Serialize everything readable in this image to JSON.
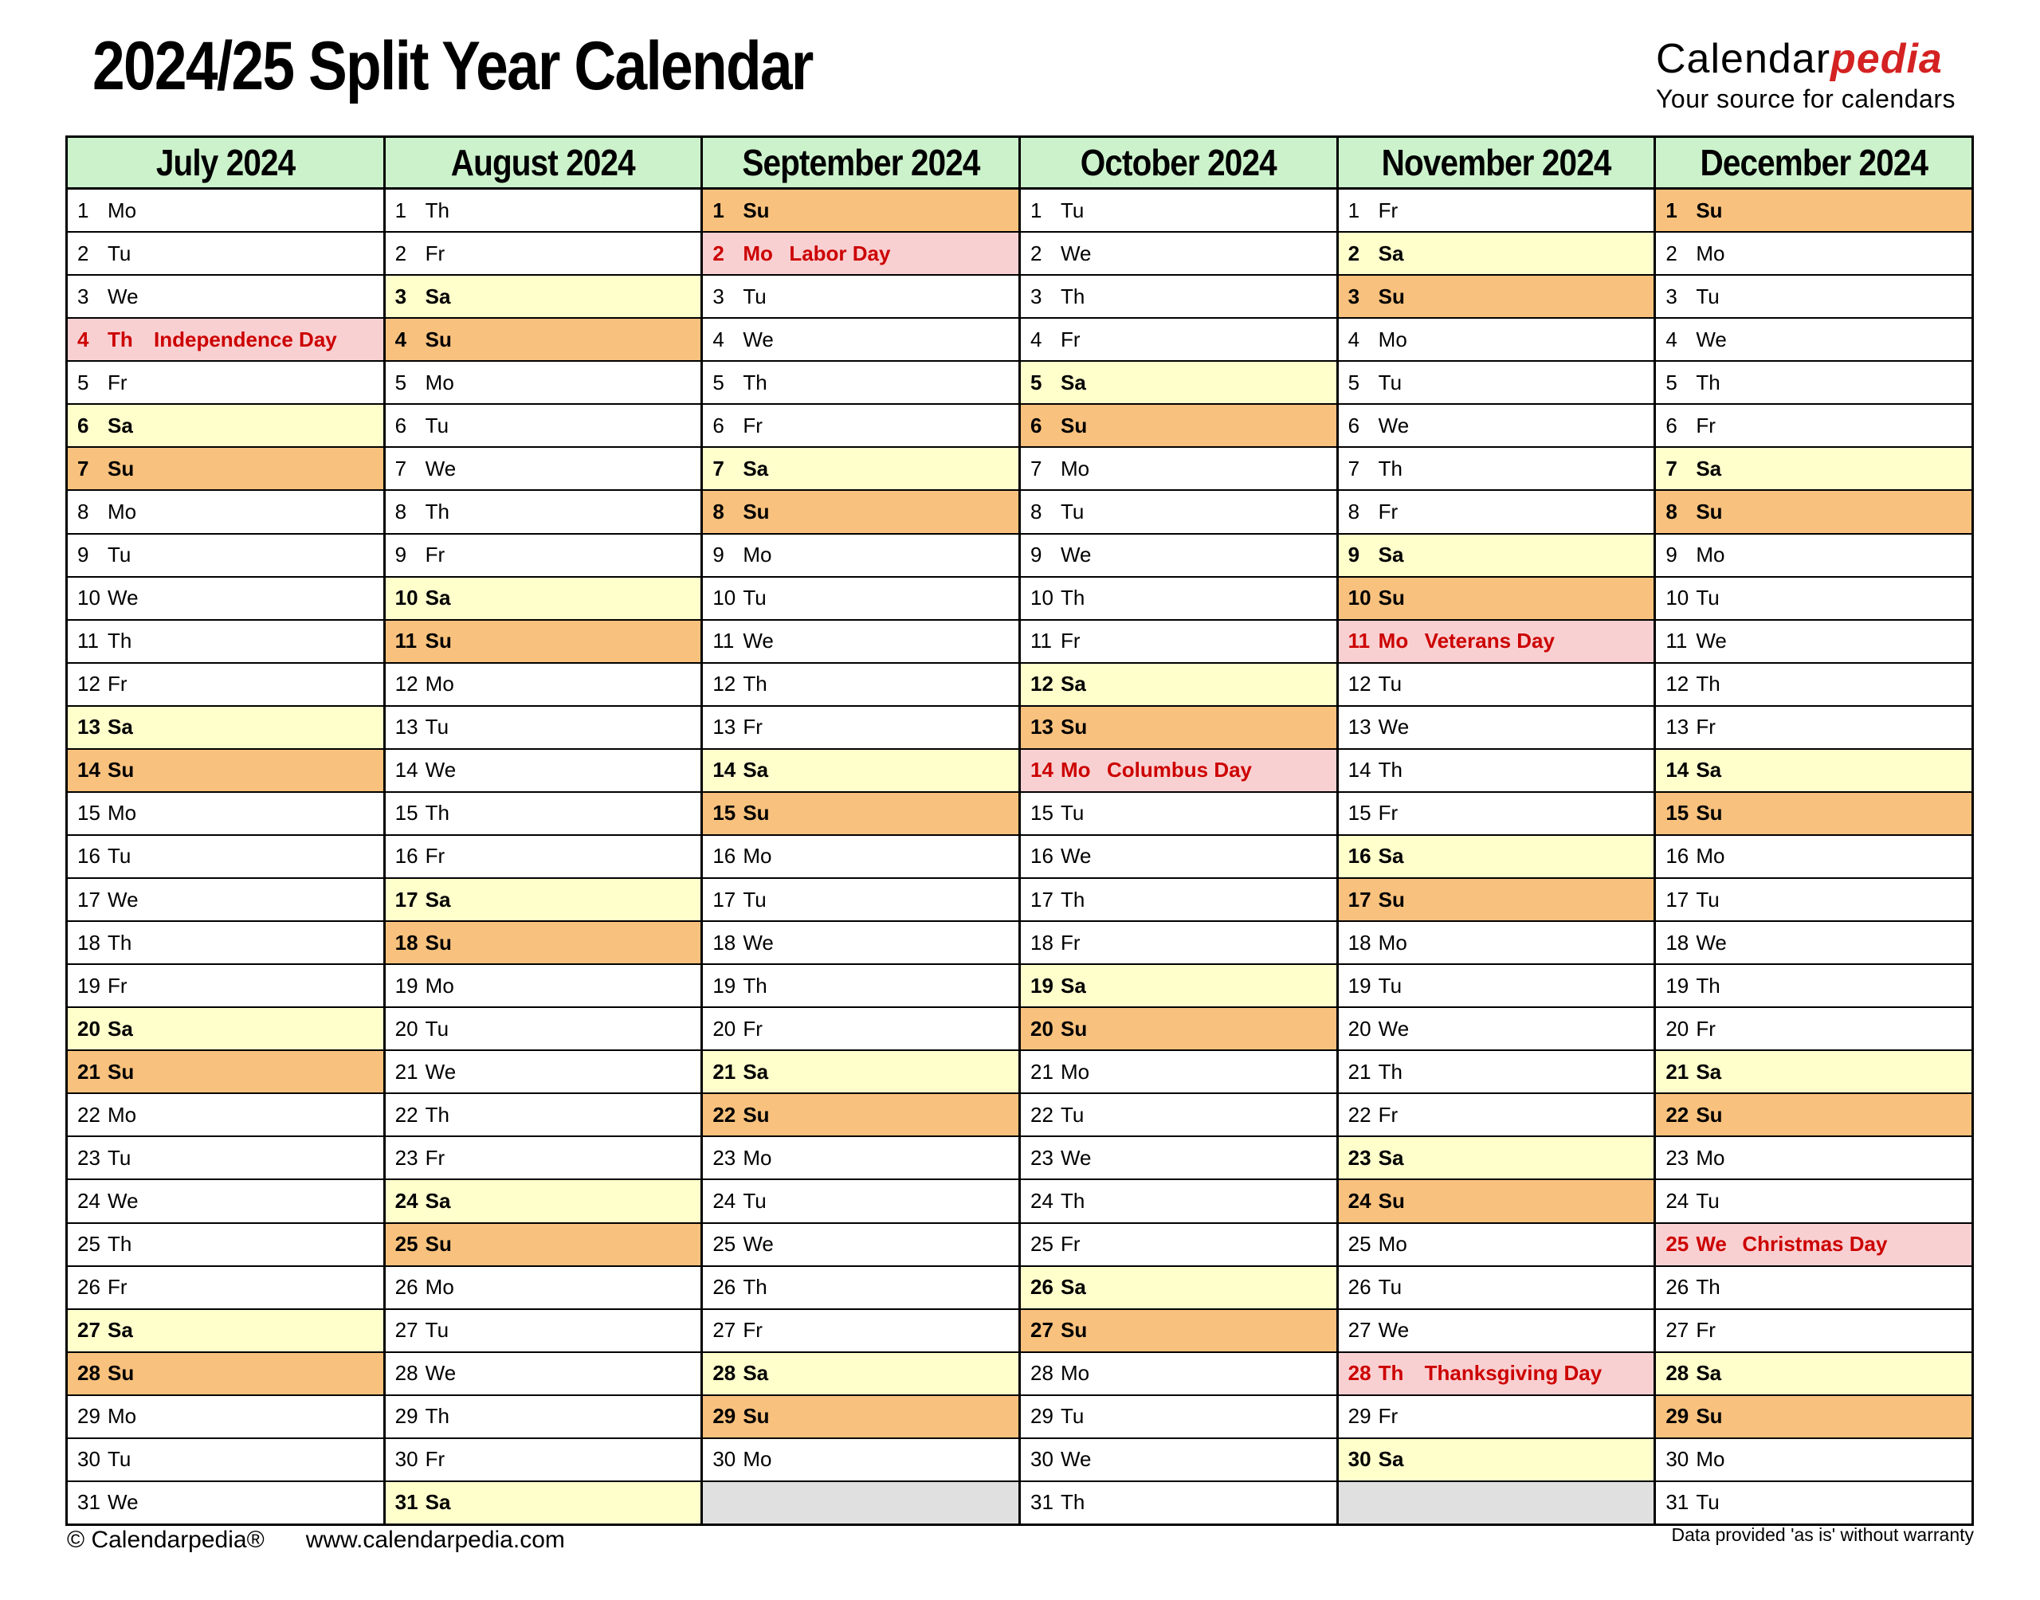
{
  "title": "2024/25 Split Year Calendar",
  "logo": {
    "brand_black": "Calendar",
    "brand_red": "pedia",
    "tagline": "Your source for calendars"
  },
  "colors": {
    "header_bg": "#ccf2cc",
    "saturday_bg": "#ffffcc",
    "sunday_bg": "#f8c17d",
    "holiday_bg": "#f9d0d2",
    "holiday_text": "#cc0000",
    "empty_bg": "#e0e0e0",
    "logo_red": "#d42222",
    "border_color": "#000000"
  },
  "months": [
    {
      "name": "July 2024",
      "days": [
        {
          "d": 1,
          "wd": "Mo"
        },
        {
          "d": 2,
          "wd": "Tu"
        },
        {
          "d": 3,
          "wd": "We"
        },
        {
          "d": 4,
          "wd": "Th",
          "h": "Independence Day"
        },
        {
          "d": 5,
          "wd": "Fr"
        },
        {
          "d": 6,
          "wd": "Sa"
        },
        {
          "d": 7,
          "wd": "Su"
        },
        {
          "d": 8,
          "wd": "Mo"
        },
        {
          "d": 9,
          "wd": "Tu"
        },
        {
          "d": 10,
          "wd": "We"
        },
        {
          "d": 11,
          "wd": "Th"
        },
        {
          "d": 12,
          "wd": "Fr"
        },
        {
          "d": 13,
          "wd": "Sa"
        },
        {
          "d": 14,
          "wd": "Su"
        },
        {
          "d": 15,
          "wd": "Mo"
        },
        {
          "d": 16,
          "wd": "Tu"
        },
        {
          "d": 17,
          "wd": "We"
        },
        {
          "d": 18,
          "wd": "Th"
        },
        {
          "d": 19,
          "wd": "Fr"
        },
        {
          "d": 20,
          "wd": "Sa"
        },
        {
          "d": 21,
          "wd": "Su"
        },
        {
          "d": 22,
          "wd": "Mo"
        },
        {
          "d": 23,
          "wd": "Tu"
        },
        {
          "d": 24,
          "wd": "We"
        },
        {
          "d": 25,
          "wd": "Th"
        },
        {
          "d": 26,
          "wd": "Fr"
        },
        {
          "d": 27,
          "wd": "Sa"
        },
        {
          "d": 28,
          "wd": "Su"
        },
        {
          "d": 29,
          "wd": "Mo"
        },
        {
          "d": 30,
          "wd": "Tu"
        },
        {
          "d": 31,
          "wd": "We"
        }
      ]
    },
    {
      "name": "August 2024",
      "days": [
        {
          "d": 1,
          "wd": "Th"
        },
        {
          "d": 2,
          "wd": "Fr"
        },
        {
          "d": 3,
          "wd": "Sa"
        },
        {
          "d": 4,
          "wd": "Su"
        },
        {
          "d": 5,
          "wd": "Mo"
        },
        {
          "d": 6,
          "wd": "Tu"
        },
        {
          "d": 7,
          "wd": "We"
        },
        {
          "d": 8,
          "wd": "Th"
        },
        {
          "d": 9,
          "wd": "Fr"
        },
        {
          "d": 10,
          "wd": "Sa"
        },
        {
          "d": 11,
          "wd": "Su"
        },
        {
          "d": 12,
          "wd": "Mo"
        },
        {
          "d": 13,
          "wd": "Tu"
        },
        {
          "d": 14,
          "wd": "We"
        },
        {
          "d": 15,
          "wd": "Th"
        },
        {
          "d": 16,
          "wd": "Fr"
        },
        {
          "d": 17,
          "wd": "Sa"
        },
        {
          "d": 18,
          "wd": "Su"
        },
        {
          "d": 19,
          "wd": "Mo"
        },
        {
          "d": 20,
          "wd": "Tu"
        },
        {
          "d": 21,
          "wd": "We"
        },
        {
          "d": 22,
          "wd": "Th"
        },
        {
          "d": 23,
          "wd": "Fr"
        },
        {
          "d": 24,
          "wd": "Sa"
        },
        {
          "d": 25,
          "wd": "Su"
        },
        {
          "d": 26,
          "wd": "Mo"
        },
        {
          "d": 27,
          "wd": "Tu"
        },
        {
          "d": 28,
          "wd": "We"
        },
        {
          "d": 29,
          "wd": "Th"
        },
        {
          "d": 30,
          "wd": "Fr"
        },
        {
          "d": 31,
          "wd": "Sa"
        }
      ]
    },
    {
      "name": "September 2024",
      "days": [
        {
          "d": 1,
          "wd": "Su"
        },
        {
          "d": 2,
          "wd": "Mo",
          "h": "Labor Day"
        },
        {
          "d": 3,
          "wd": "Tu"
        },
        {
          "d": 4,
          "wd": "We"
        },
        {
          "d": 5,
          "wd": "Th"
        },
        {
          "d": 6,
          "wd": "Fr"
        },
        {
          "d": 7,
          "wd": "Sa"
        },
        {
          "d": 8,
          "wd": "Su"
        },
        {
          "d": 9,
          "wd": "Mo"
        },
        {
          "d": 10,
          "wd": "Tu"
        },
        {
          "d": 11,
          "wd": "We"
        },
        {
          "d": 12,
          "wd": "Th"
        },
        {
          "d": 13,
          "wd": "Fr"
        },
        {
          "d": 14,
          "wd": "Sa"
        },
        {
          "d": 15,
          "wd": "Su"
        },
        {
          "d": 16,
          "wd": "Mo"
        },
        {
          "d": 17,
          "wd": "Tu"
        },
        {
          "d": 18,
          "wd": "We"
        },
        {
          "d": 19,
          "wd": "Th"
        },
        {
          "d": 20,
          "wd": "Fr"
        },
        {
          "d": 21,
          "wd": "Sa"
        },
        {
          "d": 22,
          "wd": "Su"
        },
        {
          "d": 23,
          "wd": "Mo"
        },
        {
          "d": 24,
          "wd": "Tu"
        },
        {
          "d": 25,
          "wd": "We"
        },
        {
          "d": 26,
          "wd": "Th"
        },
        {
          "d": 27,
          "wd": "Fr"
        },
        {
          "d": 28,
          "wd": "Sa"
        },
        {
          "d": 29,
          "wd": "Su"
        },
        {
          "d": 30,
          "wd": "Mo"
        }
      ]
    },
    {
      "name": "October 2024",
      "days": [
        {
          "d": 1,
          "wd": "Tu"
        },
        {
          "d": 2,
          "wd": "We"
        },
        {
          "d": 3,
          "wd": "Th"
        },
        {
          "d": 4,
          "wd": "Fr"
        },
        {
          "d": 5,
          "wd": "Sa"
        },
        {
          "d": 6,
          "wd": "Su"
        },
        {
          "d": 7,
          "wd": "Mo"
        },
        {
          "d": 8,
          "wd": "Tu"
        },
        {
          "d": 9,
          "wd": "We"
        },
        {
          "d": 10,
          "wd": "Th"
        },
        {
          "d": 11,
          "wd": "Fr"
        },
        {
          "d": 12,
          "wd": "Sa"
        },
        {
          "d": 13,
          "wd": "Su"
        },
        {
          "d": 14,
          "wd": "Mo",
          "h": "Columbus Day"
        },
        {
          "d": 15,
          "wd": "Tu"
        },
        {
          "d": 16,
          "wd": "We"
        },
        {
          "d": 17,
          "wd": "Th"
        },
        {
          "d": 18,
          "wd": "Fr"
        },
        {
          "d": 19,
          "wd": "Sa"
        },
        {
          "d": 20,
          "wd": "Su"
        },
        {
          "d": 21,
          "wd": "Mo"
        },
        {
          "d": 22,
          "wd": "Tu"
        },
        {
          "d": 23,
          "wd": "We"
        },
        {
          "d": 24,
          "wd": "Th"
        },
        {
          "d": 25,
          "wd": "Fr"
        },
        {
          "d": 26,
          "wd": "Sa"
        },
        {
          "d": 27,
          "wd": "Su"
        },
        {
          "d": 28,
          "wd": "Mo"
        },
        {
          "d": 29,
          "wd": "Tu"
        },
        {
          "d": 30,
          "wd": "We"
        },
        {
          "d": 31,
          "wd": "Th"
        }
      ]
    },
    {
      "name": "November 2024",
      "days": [
        {
          "d": 1,
          "wd": "Fr"
        },
        {
          "d": 2,
          "wd": "Sa"
        },
        {
          "d": 3,
          "wd": "Su"
        },
        {
          "d": 4,
          "wd": "Mo"
        },
        {
          "d": 5,
          "wd": "Tu"
        },
        {
          "d": 6,
          "wd": "We"
        },
        {
          "d": 7,
          "wd": "Th"
        },
        {
          "d": 8,
          "wd": "Fr"
        },
        {
          "d": 9,
          "wd": "Sa"
        },
        {
          "d": 10,
          "wd": "Su"
        },
        {
          "d": 11,
          "wd": "Mo",
          "h": "Veterans Day"
        },
        {
          "d": 12,
          "wd": "Tu"
        },
        {
          "d": 13,
          "wd": "We"
        },
        {
          "d": 14,
          "wd": "Th"
        },
        {
          "d": 15,
          "wd": "Fr"
        },
        {
          "d": 16,
          "wd": "Sa"
        },
        {
          "d": 17,
          "wd": "Su"
        },
        {
          "d": 18,
          "wd": "Mo"
        },
        {
          "d": 19,
          "wd": "Tu"
        },
        {
          "d": 20,
          "wd": "We"
        },
        {
          "d": 21,
          "wd": "Th"
        },
        {
          "d": 22,
          "wd": "Fr"
        },
        {
          "d": 23,
          "wd": "Sa"
        },
        {
          "d": 24,
          "wd": "Su"
        },
        {
          "d": 25,
          "wd": "Mo"
        },
        {
          "d": 26,
          "wd": "Tu"
        },
        {
          "d": 27,
          "wd": "We"
        },
        {
          "d": 28,
          "wd": "Th",
          "h": "Thanksgiving Day"
        },
        {
          "d": 29,
          "wd": "Fr"
        },
        {
          "d": 30,
          "wd": "Sa"
        }
      ]
    },
    {
      "name": "December 2024",
      "days": [
        {
          "d": 1,
          "wd": "Su"
        },
        {
          "d": 2,
          "wd": "Mo"
        },
        {
          "d": 3,
          "wd": "Tu"
        },
        {
          "d": 4,
          "wd": "We"
        },
        {
          "d": 5,
          "wd": "Th"
        },
        {
          "d": 6,
          "wd": "Fr"
        },
        {
          "d": 7,
          "wd": "Sa"
        },
        {
          "d": 8,
          "wd": "Su"
        },
        {
          "d": 9,
          "wd": "Mo"
        },
        {
          "d": 10,
          "wd": "Tu"
        },
        {
          "d": 11,
          "wd": "We"
        },
        {
          "d": 12,
          "wd": "Th"
        },
        {
          "d": 13,
          "wd": "Fr"
        },
        {
          "d": 14,
          "wd": "Sa"
        },
        {
          "d": 15,
          "wd": "Su"
        },
        {
          "d": 16,
          "wd": "Mo"
        },
        {
          "d": 17,
          "wd": "Tu"
        },
        {
          "d": 18,
          "wd": "We"
        },
        {
          "d": 19,
          "wd": "Th"
        },
        {
          "d": 20,
          "wd": "Fr"
        },
        {
          "d": 21,
          "wd": "Sa"
        },
        {
          "d": 22,
          "wd": "Su"
        },
        {
          "d": 23,
          "wd": "Mo"
        },
        {
          "d": 24,
          "wd": "Tu"
        },
        {
          "d": 25,
          "wd": "We",
          "h": "Christmas Day"
        },
        {
          "d": 26,
          "wd": "Th"
        },
        {
          "d": 27,
          "wd": "Fr"
        },
        {
          "d": 28,
          "wd": "Sa"
        },
        {
          "d": 29,
          "wd": "Su"
        },
        {
          "d": 30,
          "wd": "Mo"
        },
        {
          "d": 31,
          "wd": "Tu"
        }
      ]
    }
  ],
  "footer": {
    "copyright": "© Calendarpedia®",
    "website": "www.calendarpedia.com",
    "disclaimer": "Data provided 'as is' without warranty"
  }
}
